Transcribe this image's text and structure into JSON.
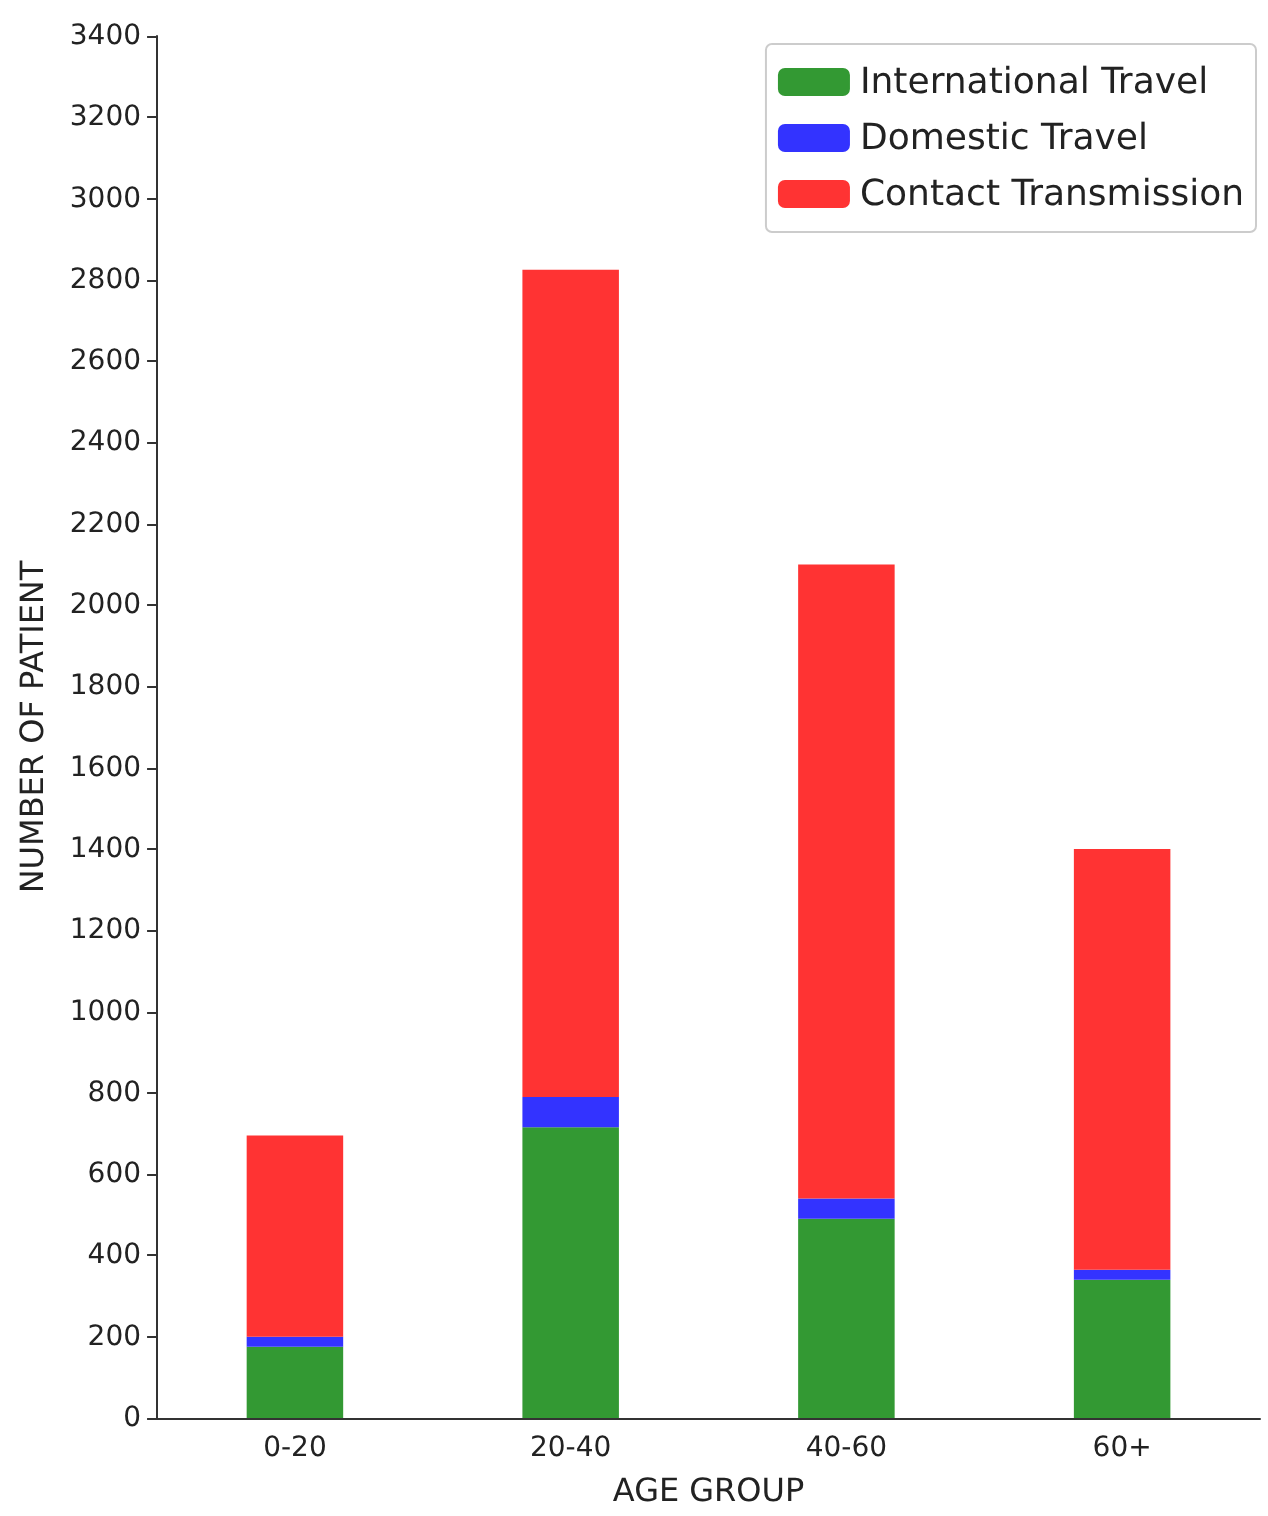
{
  "chart_data": {
    "type": "bar",
    "stacked": true,
    "xlabel": "AGE GROUP",
    "ylabel": "NUMBER OF PATIENT",
    "categories": [
      "0-20",
      "20-40",
      "40-60",
      "60+"
    ],
    "series": [
      {
        "name": "International Travel",
        "color": "#339933",
        "values": [
          175,
          715,
          490,
          340
        ]
      },
      {
        "name": "Domestic Travel",
        "color": "#3333ff",
        "values": [
          25,
          75,
          50,
          25
        ]
      },
      {
        "name": "Contact Transmission",
        "color": "#ff3333",
        "values": [
          495,
          2035,
          1560,
          1035
        ]
      }
    ],
    "ylim": [
      0,
      3400
    ],
    "yticks": [
      0,
      200,
      400,
      600,
      800,
      1000,
      1200,
      1400,
      1600,
      1800,
      2000,
      2200,
      2400,
      2600,
      2800,
      3000,
      3200,
      3400
    ],
    "grid": false,
    "legend": "top right"
  }
}
